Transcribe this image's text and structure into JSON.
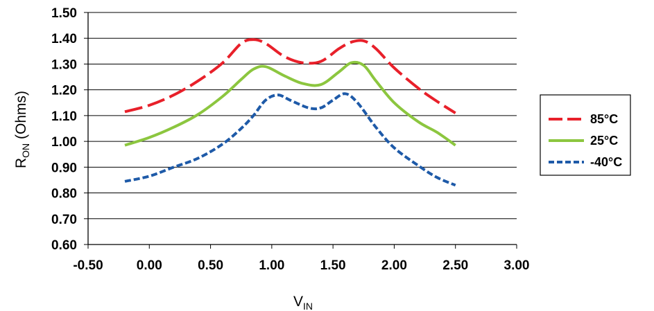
{
  "chart_data": {
    "type": "line",
    "title": "",
    "xlabel": {
      "main": "V",
      "sub": "IN"
    },
    "ylabel": {
      "main": "R",
      "sub": "ON",
      "rest": " (Ohms)"
    },
    "xlim": [
      -0.5,
      3.0
    ],
    "ylim": [
      0.6,
      1.5
    ],
    "x_ticks": [
      "-0.50",
      "0.00",
      "0.50",
      "1.00",
      "1.50",
      "2.00",
      "2.50",
      "3.00"
    ],
    "y_ticks": [
      "0.60",
      "0.70",
      "0.80",
      "0.90",
      "1.00",
      "1.10",
      "1.20",
      "1.30",
      "1.40",
      "1.50"
    ],
    "grid": "horizontal",
    "legend_position": "right",
    "series": [
      {
        "name": "85°C",
        "color": "#e8202a",
        "dash": "long-dash",
        "x": [
          -0.2,
          0.0,
          0.2,
          0.4,
          0.6,
          0.75,
          0.85,
          0.95,
          1.1,
          1.25,
          1.4,
          1.55,
          1.65,
          1.75,
          1.85,
          2.0,
          2.2,
          2.35,
          2.5
        ],
        "y": [
          1.115,
          1.14,
          1.18,
          1.235,
          1.305,
          1.38,
          1.395,
          1.38,
          1.33,
          1.305,
          1.31,
          1.36,
          1.385,
          1.39,
          1.36,
          1.285,
          1.205,
          1.155,
          1.11
        ]
      },
      {
        "name": "25°C",
        "color": "#8cc63f",
        "dash": "solid",
        "x": [
          -0.2,
          0.0,
          0.2,
          0.4,
          0.6,
          0.75,
          0.85,
          0.95,
          1.1,
          1.25,
          1.4,
          1.55,
          1.65,
          1.75,
          1.85,
          2.0,
          2.2,
          2.35,
          2.5
        ],
        "y": [
          0.985,
          1.015,
          1.055,
          1.105,
          1.175,
          1.24,
          1.28,
          1.29,
          1.255,
          1.225,
          1.22,
          1.27,
          1.305,
          1.295,
          1.235,
          1.15,
          1.075,
          1.035,
          0.985
        ]
      },
      {
        "name": "-40°C",
        "color": "#1e5aa8",
        "dash": "short-dash",
        "x": [
          -0.2,
          0.0,
          0.2,
          0.4,
          0.6,
          0.75,
          0.85,
          0.95,
          1.05,
          1.15,
          1.3,
          1.4,
          1.5,
          1.6,
          1.7,
          1.85,
          2.0,
          2.2,
          2.35,
          2.5
        ],
        "y": [
          0.845,
          0.865,
          0.9,
          0.935,
          0.99,
          1.05,
          1.1,
          1.16,
          1.18,
          1.16,
          1.13,
          1.13,
          1.16,
          1.185,
          1.15,
          1.055,
          0.975,
          0.905,
          0.86,
          0.83
        ]
      }
    ]
  }
}
